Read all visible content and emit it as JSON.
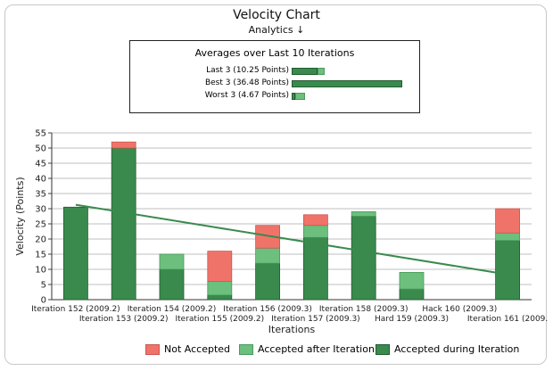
{
  "title": "Velocity Chart",
  "subtitle": "Analytics ↓",
  "averages": {
    "title": "Averages over Last 10 Iterations",
    "rows": [
      {
        "label": "Last 3 (10.25 Points)",
        "during": 8.6,
        "after": 2.3
      },
      {
        "label": "Best 3 (36.48 Points)",
        "during": 36.5,
        "after": 0
      },
      {
        "label": "Worst 3 (4.67 Points)",
        "during": 1.3,
        "after": 3.1
      }
    ],
    "scale_max": 36.5
  },
  "colors": {
    "not_accepted": "#f0736a",
    "accepted_after": "#6cbf7d",
    "accepted_during": "#3a8a4e",
    "trend": "#3a8a4e"
  },
  "chart_data": {
    "type": "bar",
    "stacked": true,
    "title": "",
    "xlabel": "Iterations",
    "ylabel": "Velocity (Points)",
    "ylim": [
      0,
      55
    ],
    "yticks": [
      0,
      5,
      10,
      15,
      20,
      25,
      30,
      35,
      40,
      45,
      50,
      55
    ],
    "grid": true,
    "legend": "bottom",
    "categories": [
      "Iteration 152 (2009.2)",
      "Iteration 153 (2009.2)",
      "Iteration 154 (2009.2)",
      "Iteration 155 (2009.2)",
      "Iteration 156 (2009.3)",
      "Iteration 157 (2009.3)",
      "Iteration 158 (2009.3)",
      "Hard 159 (2009.3)",
      "Hack 160 (2009.3)",
      "Iteration 161 (2009."
    ],
    "series": [
      {
        "name": "Accepted during Iteration",
        "values": [
          30.5,
          50,
          10,
          1.5,
          12,
          20.5,
          27.5,
          3.5,
          0,
          19.5
        ]
      },
      {
        "name": "Accepted after Iteration",
        "values": [
          0,
          0,
          5,
          4.5,
          5,
          4,
          1.5,
          5.5,
          0,
          2.5
        ]
      },
      {
        "name": "Not Accepted",
        "values": [
          0,
          2,
          0,
          10,
          7.5,
          3.5,
          0,
          0,
          0,
          8
        ]
      }
    ],
    "trend": {
      "start": 31.3,
      "end": 8.3
    }
  }
}
